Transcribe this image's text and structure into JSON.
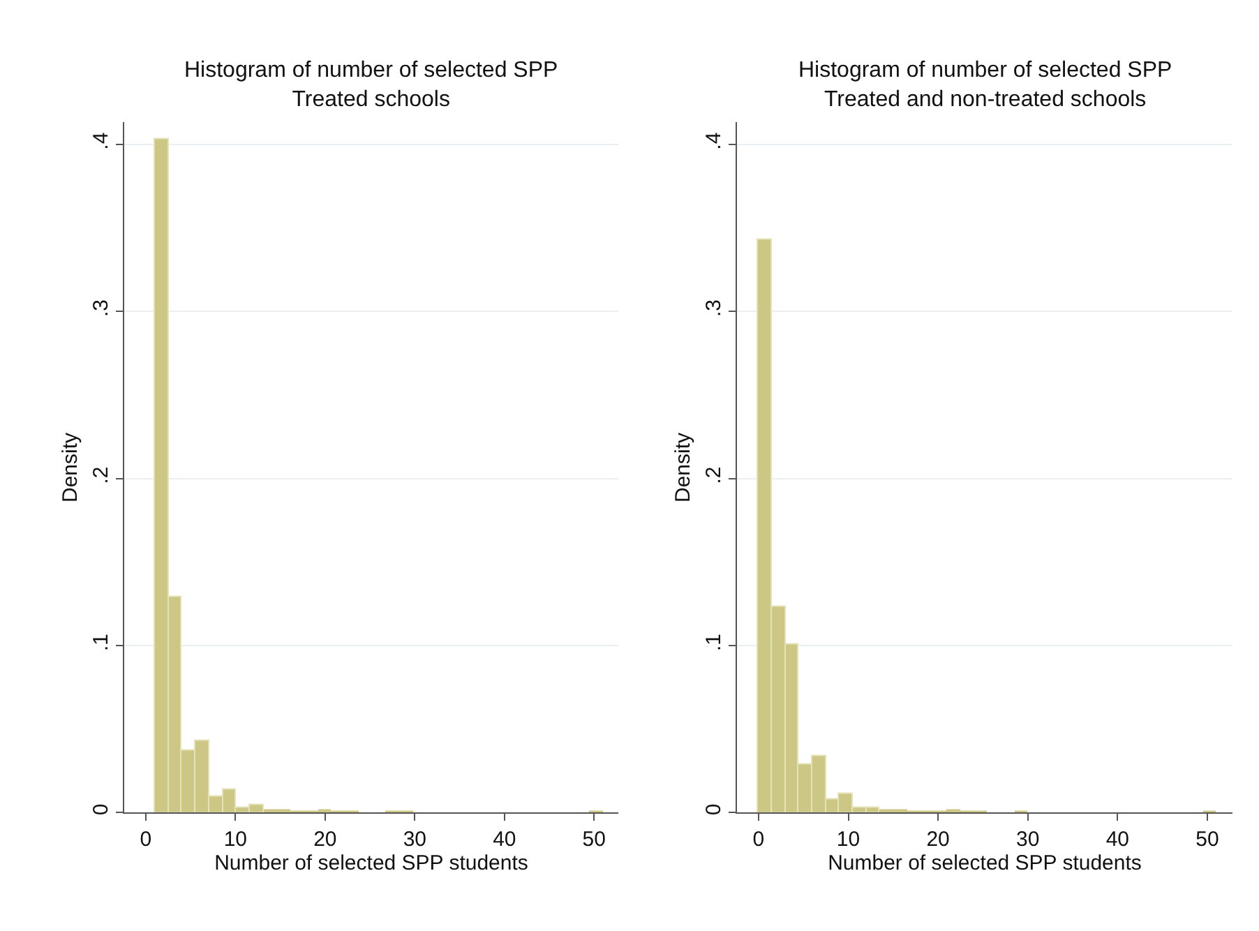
{
  "chart_data": [
    {
      "type": "histogram",
      "title": "Histogram of number of selected SPP",
      "subtitle": "Treated schools",
      "xlabel": "Number of selected SPP students",
      "ylabel": "Density",
      "color": "#cdc785",
      "bins": [
        1,
        2.5152,
        4.0303,
        5.5455,
        7.0606,
        8.5758,
        10.0909,
        11.6061,
        13.1212,
        14.6364,
        16.1515,
        17.6667,
        19.1818,
        20.697,
        22.2121,
        23.7273,
        25.2424,
        26.7576,
        28.2727,
        29.7879,
        31.303,
        32.8182,
        34.3333,
        35.8485,
        37.3636,
        38.8788,
        40.3939,
        41.9091,
        43.4242,
        44.9394,
        46.4545,
        47.9697,
        49.4848,
        51
      ],
      "values": [
        0.403,
        0.129,
        0.037,
        0.043,
        0.01,
        0.014,
        0.003,
        0.005,
        0.002,
        0.002,
        0.001,
        0.001,
        0.002,
        0.001,
        0.001,
        0,
        0,
        0.001,
        0.001,
        0,
        0,
        0,
        0,
        0,
        0,
        0,
        0,
        0,
        0,
        0,
        0,
        0,
        0.001
      ],
      "xlim": [
        -2.4,
        52.7
      ],
      "xticks": [
        0,
        10,
        20,
        30,
        40,
        50
      ],
      "ylim": [
        0,
        0.413
      ],
      "yticks": [
        {
          "value": 0,
          "label": "0"
        },
        {
          "value": 0.1,
          "label": ".1"
        },
        {
          "value": 0.2,
          "label": ".2"
        },
        {
          "value": 0.3,
          "label": ".3"
        },
        {
          "value": 0.4,
          "label": ".4"
        }
      ],
      "grid": "y"
    },
    {
      "type": "histogram",
      "title": "Histogram of number of selected SPP",
      "subtitle": "Treated and non-treated schools",
      "xlabel": "Number of selected SPP students",
      "ylabel": "Density",
      "color": "#cdc785",
      "bins": [
        0,
        1.5,
        3,
        4.5,
        6,
        7.5,
        9,
        10.5,
        12,
        13.5,
        15,
        16.5,
        18,
        19.5,
        21,
        22.5,
        24,
        25.5,
        27,
        28.5,
        30,
        31.5,
        33,
        34.5,
        36,
        37.5,
        39,
        40.5,
        42,
        43.5,
        45,
        46.5,
        48,
        49.5,
        51
      ],
      "values": [
        0.343,
        0.123,
        0.101,
        0.029,
        0.034,
        0.008,
        0.011,
        0.003,
        0.003,
        0.002,
        0.002,
        0.001,
        0.001,
        0.001,
        0.002,
        0.001,
        0.001,
        0,
        0,
        0.001,
        0,
        0,
        0,
        0,
        0,
        0,
        0,
        0,
        0,
        0,
        0,
        0,
        0,
        0.001
      ],
      "xlim": [
        -2.4,
        52.8
      ],
      "xticks": [
        0,
        10,
        20,
        30,
        40,
        50
      ],
      "ylim": [
        0,
        0.413
      ],
      "yticks": [
        {
          "value": 0,
          "label": "0"
        },
        {
          "value": 0.1,
          "label": ".1"
        },
        {
          "value": 0.2,
          "label": ".2"
        },
        {
          "value": 0.3,
          "label": ".3"
        },
        {
          "value": 0.4,
          "label": ".4"
        }
      ],
      "grid": "y"
    }
  ]
}
